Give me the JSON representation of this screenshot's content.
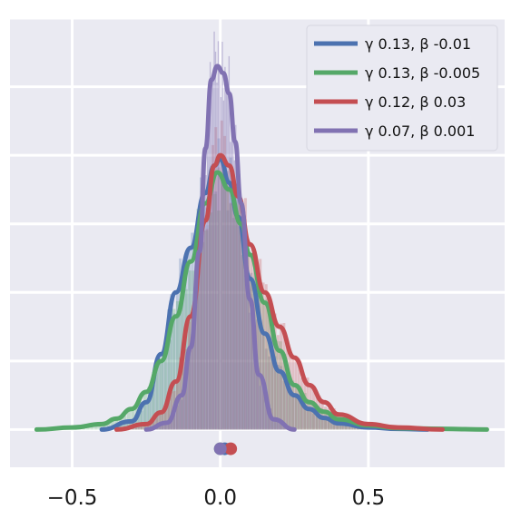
{
  "chart_data": {
    "type": "line",
    "title": "",
    "xlabel": "",
    "ylabel": "",
    "xlim": [
      -0.71,
      0.96
    ],
    "ylim": [
      -0.055,
      0.6
    ],
    "grid": true,
    "legend_position": "top-right",
    "x_ticks": [
      {
        "value": -0.5,
        "label": "−0.5"
      },
      {
        "value": 0.0,
        "label": "0.0"
      },
      {
        "value": 0.5,
        "label": "0.5"
      }
    ],
    "y_grid_values": [
      0.0,
      0.1,
      0.2,
      0.3,
      0.4,
      0.5,
      0.6
    ],
    "series": [
      {
        "name": "γ 0.13, β -0.01",
        "gamma": "0.13",
        "beta": "-0.01",
        "color": "#4c72b0",
        "x": [
          -0.4,
          -0.3,
          -0.25,
          -0.2,
          -0.15,
          -0.1,
          -0.05,
          -0.02,
          0.0,
          0.03,
          0.06,
          0.1,
          0.15,
          0.2,
          0.25,
          0.3,
          0.35,
          0.4,
          0.5,
          0.6,
          0.7
        ],
        "y": [
          0.0,
          0.012,
          0.04,
          0.11,
          0.2,
          0.265,
          0.345,
          0.385,
          0.395,
          0.36,
          0.31,
          0.22,
          0.14,
          0.085,
          0.05,
          0.03,
          0.017,
          0.009,
          0.003,
          0.001,
          0.0
        ]
      },
      {
        "name": "γ 0.13, β -0.005",
        "gamma": "0.13",
        "beta": "-0.005",
        "color": "#55a868",
        "x": [
          -0.62,
          -0.5,
          -0.4,
          -0.35,
          -0.3,
          -0.25,
          -0.2,
          -0.15,
          -0.1,
          -0.05,
          -0.01,
          0.03,
          0.07,
          0.1,
          0.15,
          0.2,
          0.25,
          0.3,
          0.35,
          0.4,
          0.5,
          0.6,
          0.75,
          0.9
        ],
        "y": [
          0.0,
          0.003,
          0.008,
          0.016,
          0.03,
          0.055,
          0.1,
          0.165,
          0.245,
          0.33,
          0.375,
          0.35,
          0.3,
          0.255,
          0.185,
          0.115,
          0.065,
          0.04,
          0.026,
          0.015,
          0.006,
          0.002,
          0.001,
          0.0
        ]
      },
      {
        "name": "γ 0.12, β 0.03",
        "gamma": "0.12",
        "beta": "0.03",
        "color": "#c44e52",
        "x": [
          -0.35,
          -0.25,
          -0.2,
          -0.15,
          -0.1,
          -0.05,
          -0.02,
          0.0,
          0.03,
          0.06,
          0.1,
          0.15,
          0.2,
          0.25,
          0.3,
          0.35,
          0.4,
          0.5,
          0.6,
          0.75
        ],
        "y": [
          0.0,
          0.008,
          0.025,
          0.07,
          0.165,
          0.305,
          0.385,
          0.4,
          0.385,
          0.34,
          0.27,
          0.2,
          0.15,
          0.105,
          0.065,
          0.04,
          0.022,
          0.008,
          0.003,
          0.0
        ]
      },
      {
        "name": "γ 0.07, β 0.001",
        "gamma": "0.07",
        "beta": "0.001",
        "color": "#8172b2",
        "x": [
          -0.25,
          -0.18,
          -0.13,
          -0.1,
          -0.07,
          -0.05,
          -0.03,
          -0.01,
          0.01,
          0.03,
          0.05,
          0.07,
          0.1,
          0.13,
          0.18,
          0.25
        ],
        "y": [
          0.0,
          0.01,
          0.05,
          0.12,
          0.26,
          0.41,
          0.51,
          0.53,
          0.52,
          0.49,
          0.42,
          0.33,
          0.19,
          0.08,
          0.015,
          0.0
        ]
      }
    ],
    "rug_points": [
      {
        "x": 0.0,
        "color": "#55a868"
      },
      {
        "x": 0.015,
        "color": "#4c72b0"
      },
      {
        "x": 0.035,
        "color": "#c44e52"
      },
      {
        "x": 0.0,
        "color": "#8172b2"
      }
    ],
    "histogram_color": "#8172b2"
  }
}
